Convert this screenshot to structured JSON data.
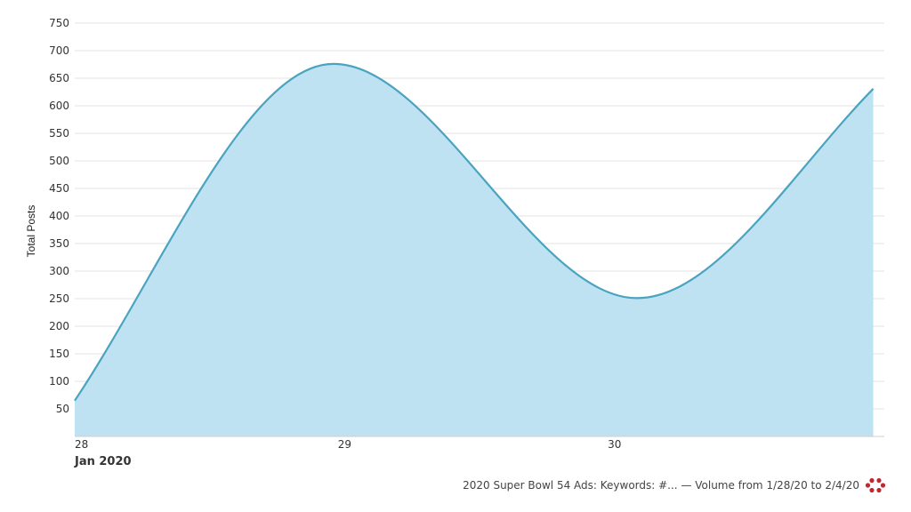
{
  "colors": {
    "area_fill": "#bfe2f3",
    "line": "#4aa3bf",
    "grid": "#e3e3e3",
    "logo": "#c0282e"
  },
  "icon": "flower-logo-icon",
  "footer": {
    "caption": "2020 Super Bowl 54 Ads: Keywords: #... — Volume from 1/28/20 to 2/4/20"
  },
  "chart_data": {
    "type": "area",
    "ylabel": "Total Posts",
    "xlabel": "",
    "month_label": "Jan 2020",
    "x_ticks": [
      "28",
      "29",
      "30"
    ],
    "y_ticks": [
      50,
      100,
      150,
      200,
      250,
      300,
      350,
      400,
      450,
      500,
      550,
      600,
      650,
      700,
      750
    ],
    "ylim": [
      0,
      750
    ],
    "xlim": [
      "2020-01-28 00:00",
      "2020-01-30 23:59"
    ],
    "grid": true,
    "legend": "none",
    "series": [
      {
        "x": [
          "2020-01-28 00:00",
          "2020-01-28 23:00",
          "2020-01-30 02:00",
          "2020-01-30 23:00"
        ],
        "values": [
          65,
          676,
          251,
          631
        ]
      }
    ]
  }
}
